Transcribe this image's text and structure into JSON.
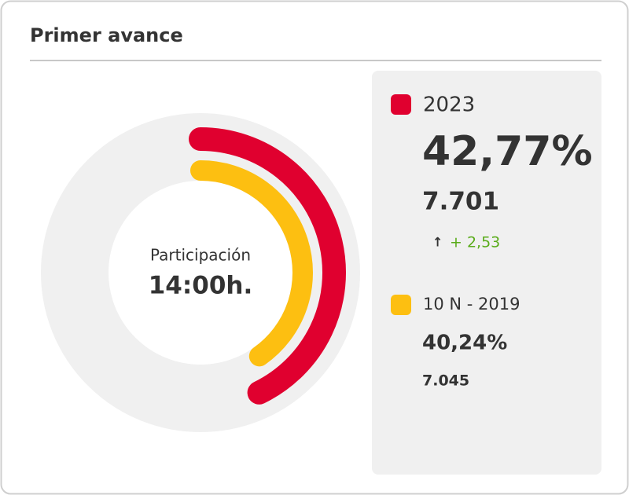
{
  "chart_data": {
    "type": "radial_bar",
    "title": "Primer avance",
    "center_label": "Participación",
    "center_value": "14:00h.",
    "ylim": [
      0,
      100
    ],
    "series": [
      {
        "name": "2023",
        "color": "#e0002f",
        "values": [
          42.77
        ],
        "value_labels": [
          "42,77%"
        ],
        "count": {
          "value": 7701,
          "label": "7.701"
        },
        "change": {
          "value": 2.53,
          "label": "+ 2,53"
        }
      },
      {
        "name": "10 N - 2019",
        "color": "#fdbf11",
        "values": [
          40.24
        ],
        "value_labels": [
          "40,24%"
        ],
        "count": {
          "value": 7045,
          "label": "7.045"
        }
      }
    ]
  }
}
